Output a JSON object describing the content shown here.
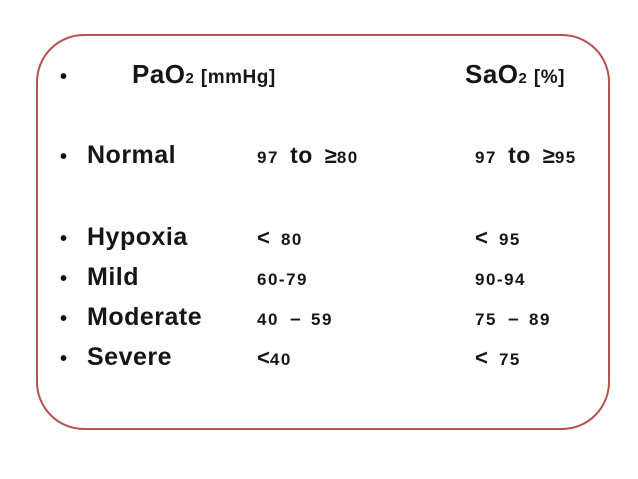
{
  "card": {
    "border_color": "#b5534e",
    "background_color": "#ffffff",
    "text_color": "#161616",
    "bullet_glyph": "•"
  },
  "header": {
    "pao2": {
      "main": "PaO",
      "sub": "2",
      "unit": "[mmHg]"
    },
    "sao2": {
      "main": "SaO",
      "sub": "2",
      "unit": "[%]"
    }
  },
  "table": {
    "rows": [
      {
        "label": "Normal",
        "pao2_text": "97 to ≥80",
        "sao2_text": "97 to ≥95",
        "pao2": [
          {
            "t": "97 ",
            "s": "num"
          },
          {
            "t": "to ",
            "s": "word"
          },
          {
            "t": "≥",
            "s": "cmp"
          },
          {
            "t": "80",
            "s": "num"
          }
        ],
        "sao2": [
          {
            "t": "97 ",
            "s": "num"
          },
          {
            "t": "to ",
            "s": "word"
          },
          {
            "t": "≥",
            "s": "cmp"
          },
          {
            "t": "95",
            "s": "num"
          }
        ]
      },
      {
        "label": "Hypoxia",
        "pao2_text": "< 80",
        "sao2_text": "< 95",
        "pao2": [
          {
            "t": "< ",
            "s": "cmp"
          },
          {
            "t": "80",
            "s": "num"
          }
        ],
        "sao2": [
          {
            "t": "< ",
            "s": "cmp"
          },
          {
            "t": "95",
            "s": "num"
          }
        ]
      },
      {
        "label": "Mild",
        "pao2_text": "60-79",
        "sao2_text": "90-94",
        "pao2": [
          {
            "t": "60-79",
            "s": "num"
          }
        ],
        "sao2": [
          {
            "t": "90-94",
            "s": "num"
          }
        ]
      },
      {
        "label": "Moderate",
        "pao2_text": "40 – 59",
        "sao2_text": "75 – 89",
        "pao2": [
          {
            "t": "40 ",
            "s": "num"
          },
          {
            "t": "– ",
            "s": "dash"
          },
          {
            "t": "59",
            "s": "num"
          }
        ],
        "sao2": [
          {
            "t": "75 ",
            "s": "num"
          },
          {
            "t": "– ",
            "s": "dash"
          },
          {
            "t": "89",
            "s": "num"
          }
        ]
      },
      {
        "label": "Severe",
        "pao2_text": "<40",
        "sao2_text": "< 75",
        "pao2": [
          {
            "t": "<",
            "s": "cmp"
          },
          {
            "t": "40",
            "s": "num"
          }
        ],
        "sao2": [
          {
            "t": "< ",
            "s": "cmp"
          },
          {
            "t": "75",
            "s": "num"
          }
        ]
      }
    ]
  }
}
